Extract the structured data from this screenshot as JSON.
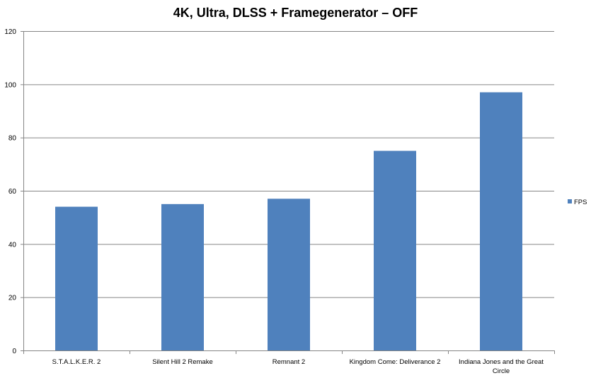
{
  "chart_data": {
    "type": "bar",
    "title": "4K, Ultra, DLSS + Framegenerator – OFF",
    "xlabel": "",
    "ylabel": "",
    "categories": [
      "S.T.A.L.K.E.R. 2",
      "Silent Hill 2 Remake",
      "Remnant 2",
      "Kingdom Come: Deliverance 2",
      "Indiana Jones and the Great Circle"
    ],
    "series": [
      {
        "name": "FPS",
        "values": [
          54,
          55,
          57,
          75,
          97
        ],
        "color": "#4f81bd"
      }
    ],
    "ylim": [
      0,
      120
    ],
    "yticks": [
      0,
      20,
      40,
      60,
      80,
      100,
      120
    ],
    "grid": true,
    "legend_position": "right"
  }
}
